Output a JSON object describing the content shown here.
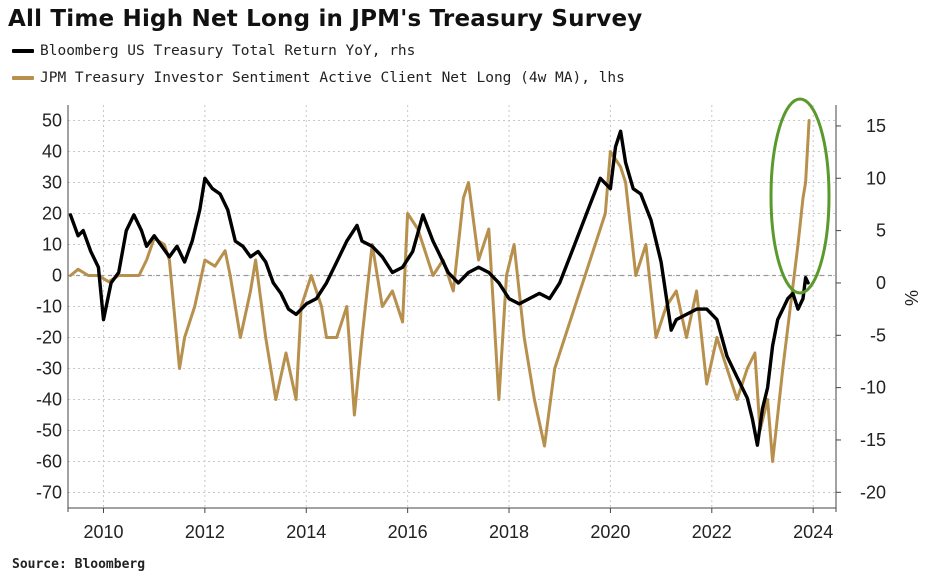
{
  "chart_data": {
    "type": "line",
    "title": "All Time High Net Long in JPM's Treasury Survey",
    "source": "Source: Bloomberg",
    "x_ticks": [
      "2010",
      "2012",
      "2014",
      "2016",
      "2018",
      "2020",
      "2022",
      "2024"
    ],
    "x_range": [
      2009.3,
      2024.45
    ],
    "left_axis": {
      "range": [
        -75,
        55
      ],
      "ticks": [
        50,
        40,
        30,
        20,
        10,
        0,
        -10,
        -20,
        -30,
        -40,
        -50,
        -60,
        -70
      ],
      "label": "lhs"
    },
    "right_axis": {
      "range": [
        -21.5,
        17
      ],
      "ticks": [
        15,
        10,
        5,
        0,
        -5,
        -10,
        -15,
        -20
      ],
      "unit_label": "%",
      "label": "rhs"
    },
    "series": [
      {
        "name": "Bloomberg US Treasury Total Return YoY, rhs",
        "axis": "right",
        "color": "#000000",
        "x": [
          2009.35,
          2009.5,
          2009.6,
          2009.75,
          2009.9,
          2010.0,
          2010.15,
          2010.3,
          2010.45,
          2010.6,
          2010.75,
          2010.85,
          2011.0,
          2011.15,
          2011.3,
          2011.45,
          2011.6,
          2011.75,
          2011.9,
          2012.0,
          2012.15,
          2012.3,
          2012.45,
          2012.6,
          2012.75,
          2012.9,
          2013.05,
          2013.2,
          2013.35,
          2013.5,
          2013.65,
          2013.8,
          2014.0,
          2014.2,
          2014.4,
          2014.6,
          2014.8,
          2015.0,
          2015.1,
          2015.3,
          2015.5,
          2015.7,
          2015.9,
          2016.1,
          2016.3,
          2016.5,
          2016.6,
          2016.8,
          2017.0,
          2017.2,
          2017.4,
          2017.6,
          2017.8,
          2018.0,
          2018.2,
          2018.4,
          2018.6,
          2018.8,
          2019.0,
          2019.2,
          2019.4,
          2019.6,
          2019.8,
          2020.0,
          2020.1,
          2020.2,
          2020.3,
          2020.45,
          2020.6,
          2020.8,
          2021.0,
          2021.2,
          2021.3,
          2021.5,
          2021.7,
          2021.9,
          2022.1,
          2022.3,
          2022.5,
          2022.7,
          2022.8,
          2022.9,
          2023.0,
          2023.1,
          2023.2,
          2023.3,
          2023.4,
          2023.5,
          2023.6,
          2023.7,
          2023.8,
          2023.85,
          2023.9
        ],
        "values": [
          6.5,
          4.5,
          5.0,
          3.0,
          1.5,
          -3.5,
          0.0,
          1.0,
          5.0,
          6.5,
          5.0,
          3.5,
          4.5,
          3.5,
          2.5,
          3.5,
          2.0,
          4.0,
          7.0,
          10.0,
          9.0,
          8.5,
          7.0,
          4.0,
          3.5,
          2.5,
          3.0,
          2.0,
          0.0,
          -1.0,
          -2.5,
          -3.0,
          -2.0,
          -1.5,
          0.0,
          2.0,
          4.0,
          5.5,
          4.0,
          3.5,
          2.5,
          1.0,
          1.5,
          3.0,
          6.5,
          4.0,
          3.0,
          1.0,
          0.0,
          1.0,
          1.5,
          1.0,
          0.0,
          -1.5,
          -2.0,
          -1.5,
          -1.0,
          -1.5,
          0.0,
          2.5,
          5.0,
          7.5,
          10.0,
          9.0,
          13.0,
          14.5,
          11.5,
          9.0,
          8.5,
          6.0,
          2.0,
          -4.5,
          -3.5,
          -3.0,
          -2.5,
          -2.5,
          -3.5,
          -7.0,
          -9.0,
          -11.0,
          -13.0,
          -15.5,
          -12.0,
          -10.0,
          -6.0,
          -3.5,
          -2.5,
          -1.5,
          -1.0,
          -2.5,
          -1.5,
          0.5,
          0.0
        ]
      },
      {
        "name": "JPM Treasury Investor Sentiment Active Client Net Long (4w MA), lhs",
        "axis": "left",
        "color": "#b8904e",
        "x": [
          2009.35,
          2009.5,
          2009.7,
          2009.9,
          2010.1,
          2010.3,
          2010.5,
          2010.7,
          2010.85,
          2011.0,
          2011.2,
          2011.3,
          2011.5,
          2011.6,
          2011.8,
          2012.0,
          2012.2,
          2012.4,
          2012.5,
          2012.7,
          2012.9,
          2013.0,
          2013.2,
          2013.4,
          2013.6,
          2013.8,
          2013.9,
          2014.1,
          2014.3,
          2014.4,
          2014.6,
          2014.8,
          2014.95,
          2015.1,
          2015.3,
          2015.5,
          2015.7,
          2015.9,
          2016.0,
          2016.2,
          2016.3,
          2016.5,
          2016.7,
          2016.9,
          2017.1,
          2017.2,
          2017.4,
          2017.6,
          2017.8,
          2017.95,
          2018.1,
          2018.3,
          2018.5,
          2018.7,
          2018.9,
          2019.1,
          2019.3,
          2019.5,
          2019.7,
          2019.9,
          2020.0,
          2020.2,
          2020.3,
          2020.5,
          2020.7,
          2020.9,
          2021.1,
          2021.3,
          2021.5,
          2021.7,
          2021.9,
          2022.1,
          2022.3,
          2022.5,
          2022.7,
          2022.85,
          2022.95,
          2023.1,
          2023.2,
          2023.4,
          2023.55,
          2023.7,
          2023.8,
          2023.85,
          2023.92
        ],
        "values": [
          0,
          2,
          0,
          0,
          -2,
          0,
          0,
          0,
          5,
          12,
          10,
          5,
          -30,
          -20,
          -10,
          5,
          3,
          8,
          0,
          -20,
          -5,
          5,
          -20,
          -40,
          -25,
          -40,
          -10,
          0,
          -10,
          -20,
          -20,
          -10,
          -45,
          -20,
          10,
          -10,
          -5,
          -15,
          20,
          15,
          10,
          0,
          5,
          -5,
          25,
          30,
          5,
          15,
          -40,
          0,
          10,
          -20,
          -40,
          -55,
          -30,
          -20,
          -10,
          0,
          10,
          20,
          40,
          35,
          30,
          0,
          10,
          -20,
          -10,
          -5,
          -20,
          -5,
          -35,
          -20,
          -30,
          -40,
          -30,
          -25,
          -50,
          -40,
          -60,
          -30,
          -10,
          10,
          25,
          30,
          50
        ]
      }
    ]
  }
}
